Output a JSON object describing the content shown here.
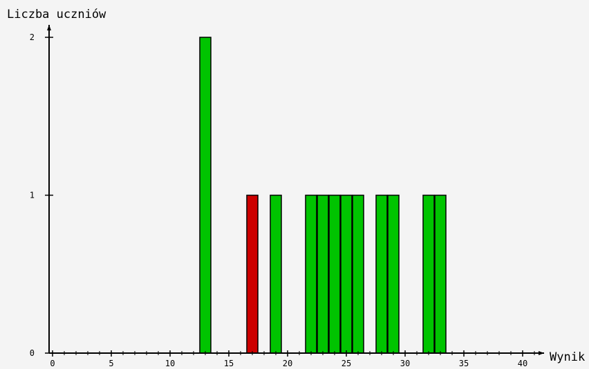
{
  "chart_data": {
    "type": "bar",
    "xlabel": "Wynik",
    "ylabel": "Liczba uczniów",
    "xlim": [
      0,
      41
    ],
    "ylim": [
      0,
      2
    ],
    "x_ticks": [
      0,
      5,
      10,
      15,
      20,
      25,
      30,
      35,
      40
    ],
    "y_ticks": [
      0,
      1,
      2
    ],
    "grid": false,
    "legend": "none",
    "colors": {
      "background": "#f4f4f4",
      "axis": "#000000",
      "bar_default": "#00c400",
      "bar_highlight": "#cc0000",
      "bar_outline": "#000000"
    },
    "bars": [
      {
        "x": 13,
        "value": 2,
        "highlight": false
      },
      {
        "x": 17,
        "value": 1,
        "highlight": true
      },
      {
        "x": 19,
        "value": 1,
        "highlight": false
      },
      {
        "x": 22,
        "value": 1,
        "highlight": false
      },
      {
        "x": 23,
        "value": 1,
        "highlight": false
      },
      {
        "x": 24,
        "value": 1,
        "highlight": false
      },
      {
        "x": 25,
        "value": 1,
        "highlight": false
      },
      {
        "x": 26,
        "value": 1,
        "highlight": false
      },
      {
        "x": 28,
        "value": 1,
        "highlight": false
      },
      {
        "x": 29,
        "value": 1,
        "highlight": false
      },
      {
        "x": 32,
        "value": 1,
        "highlight": false
      },
      {
        "x": 33,
        "value": 1,
        "highlight": false
      }
    ]
  }
}
